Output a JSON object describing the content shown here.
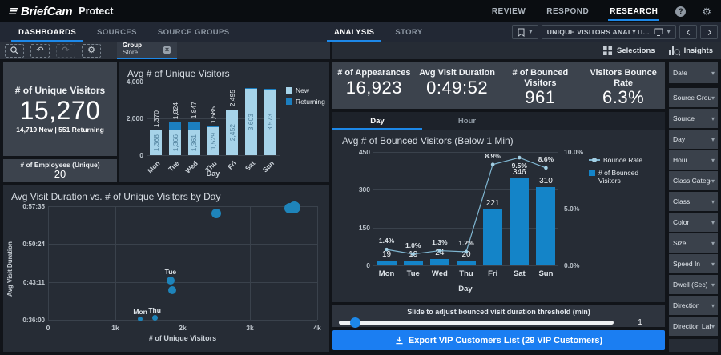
{
  "topbar": {
    "logo_text": "BriefCam",
    "product": "Protect",
    "nav": [
      {
        "label": "REVIEW",
        "active": false
      },
      {
        "label": "RESPOND",
        "active": false
      },
      {
        "label": "RESEARCH",
        "active": true
      }
    ]
  },
  "navbar": {
    "left_tabs": [
      {
        "label": "DASHBOARDS",
        "active": true
      },
      {
        "label": "SOURCES",
        "active": false
      },
      {
        "label": "SOURCE GROUPS",
        "active": false
      }
    ],
    "center_tabs": [
      {
        "label": "ANALYSIS",
        "active": true
      },
      {
        "label": "STORY",
        "active": false
      }
    ],
    "dashboard_selector": "UNIQUE VISITORS ANALYTI..."
  },
  "toolbar": {
    "filter_chip": {
      "label": "Group",
      "value": "Store"
    },
    "selections_label": "Selections",
    "insights_label": "Insights"
  },
  "left_kpis": {
    "unique_visitors": {
      "label": "# of Unique Visitors",
      "value": "15,270",
      "subtext": "14,719 New | 551 Returning"
    },
    "employees": {
      "label": "# of Employees (Unique)",
      "value": "20"
    }
  },
  "right_kpis": [
    {
      "label": "# of Appearances",
      "value": "16,923"
    },
    {
      "label": "Avg Visit Duration",
      "value": "0:49:52"
    },
    {
      "label": "# of Bounced Visitors",
      "value": "961"
    },
    {
      "label": "Visitors Bounce Rate",
      "value": "6.3%"
    }
  ],
  "bounce_section": {
    "tabs": [
      {
        "label": "Day",
        "active": true
      },
      {
        "label": "Hour",
        "active": false
      }
    ]
  },
  "slider": {
    "label": "Slide to adjust bounced visit duration threshold (min)",
    "value": "1"
  },
  "export_button": {
    "label": "Export VIP Customers List (29 VIP Customers)"
  },
  "sidebar_filters": {
    "date": "Date",
    "items": [
      "Source Group ...",
      "Source",
      "Day",
      "Hour",
      "Class Category",
      "Class",
      "Color",
      "Size",
      "Speed In",
      "Dwell (Sec)",
      "Direction",
      "Direction Label"
    ]
  },
  "icons": {
    "caret": "▾",
    "close": "×",
    "gear": "⚙",
    "undo": "↶",
    "redo": "↷",
    "help": "?"
  },
  "colors": {
    "accent_blue": "#1d88e8",
    "bar_new": "#a6d3e9",
    "bar_returning": "#1c7fc0",
    "bounced_bar": "#1484c8",
    "line": "#7fb6d1",
    "export_button": "#1b7ef2"
  },
  "chart_data": [
    {
      "type": "bar",
      "title": "Avg # of Unique Visitors",
      "categories": [
        "Mon",
        "Tue",
        "Wed",
        "Thu",
        "Fri",
        "Sat",
        "Sun"
      ],
      "series": [
        {
          "name": "New",
          "values": [
            1368,
            1366,
            1361,
            1529,
            2452,
            3603,
            3573
          ]
        },
        {
          "name": "Returning",
          "values": [
            2,
            458,
            486,
            56,
            43,
            45,
            47
          ]
        }
      ],
      "totals": [
        1370,
        1824,
        1847,
        1585,
        2495,
        3648,
        3620
      ],
      "new_labels": [
        "1,368",
        "1,366",
        "1,361",
        "1,529",
        "2,452",
        "3,603",
        "3,573"
      ],
      "total_labels": [
        "1,370",
        "1,824",
        "1,847",
        "1,585",
        "2,495",
        "",
        ""
      ],
      "legend": [
        "New",
        "Returning"
      ],
      "xlabel": "Day",
      "ylim": [
        0,
        4000
      ],
      "yticks": [
        "4,000",
        "2,000",
        "0"
      ]
    },
    {
      "type": "scatter",
      "title": "Avg Visit Duration vs. # of Unique Visitors by Day",
      "xlabel": "# of Unique Visitors",
      "ylabel": "Avg Visit Duration",
      "xlim": [
        0,
        4000
      ],
      "xticks": [
        "0",
        "1k",
        "2k",
        "3k",
        "4k"
      ],
      "ylim_seconds": [
        2160,
        3455
      ],
      "yticks": [
        "0:57:35",
        "0:50:24",
        "0:43:11",
        "0:36:00"
      ],
      "points": [
        {
          "label": "Mon",
          "x": 1370,
          "duration": "0:36:05",
          "y_seconds": 2165,
          "r": 3,
          "show_label": true
        },
        {
          "label": "Thu",
          "x": 1585,
          "duration": "0:36:20",
          "y_seconds": 2180,
          "r": 3.5,
          "show_label": true
        },
        {
          "label": "Wed",
          "x": 1845,
          "duration": "0:41:40",
          "y_seconds": 2500,
          "r": 5,
          "show_label": false
        },
        {
          "label": "Tue",
          "x": 1820,
          "duration": "0:43:30",
          "y_seconds": 2610,
          "r": 5,
          "show_label": true
        },
        {
          "label": "Fri",
          "x": 2495,
          "duration": "0:56:15",
          "y_seconds": 3375,
          "r": 6,
          "show_label": false
        },
        {
          "label": "Sun",
          "x": 3590,
          "duration": "0:57:10",
          "y_seconds": 3430,
          "r": 6.5,
          "show_label": false
        },
        {
          "label": "Sat",
          "x": 3655,
          "duration": "0:57:20",
          "y_seconds": 3440,
          "r": 7.5,
          "show_label": false
        }
      ]
    },
    {
      "type": "bar+line",
      "title": "Avg # of Bounced Visitors (Below 1 Min)",
      "categories": [
        "Mon",
        "Tue",
        "Wed",
        "Thu",
        "Fri",
        "Sat",
        "Sun"
      ],
      "bars": {
        "name": "# of Bounced Visitors",
        "values": [
          19,
          19,
          24,
          20,
          221,
          346,
          310
        ],
        "labels": [
          "19",
          "19",
          "24",
          "20",
          "221",
          "346",
          "310"
        ]
      },
      "line": {
        "name": "Bounce Rate",
        "values_pct": [
          1.4,
          1.0,
          1.3,
          1.2,
          8.9,
          9.5,
          8.6
        ],
        "labels": [
          "1.4%",
          "1.0%",
          "1.3%",
          "1.2%",
          "8.9%",
          "9.5%",
          "8.6%"
        ]
      },
      "xlabel": "Day",
      "ylim_left": [
        0,
        450
      ],
      "yticks_left": [
        "450",
        "300",
        "150",
        "0"
      ],
      "ylim_right": [
        0,
        10
      ],
      "yticks_right": [
        "10.0%",
        "5.0%",
        "0.0%"
      ]
    }
  ]
}
